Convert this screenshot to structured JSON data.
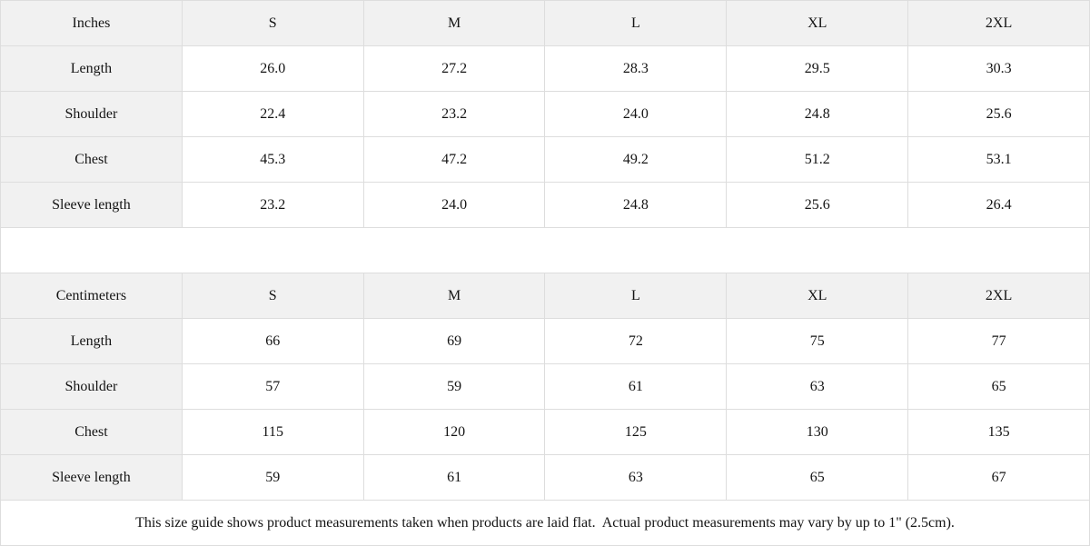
{
  "tables": [
    {
      "unit_label": "Inches",
      "sizes": [
        "S",
        "M",
        "L",
        "XL",
        "2XL"
      ],
      "rows": [
        {
          "label": "Length",
          "values": [
            "26.0",
            "27.2",
            "28.3",
            "29.5",
            "30.3"
          ]
        },
        {
          "label": "Shoulder",
          "values": [
            "22.4",
            "23.2",
            "24.0",
            "24.8",
            "25.6"
          ]
        },
        {
          "label": "Chest",
          "values": [
            "45.3",
            "47.2",
            "49.2",
            "51.2",
            "53.1"
          ]
        },
        {
          "label": "Sleeve length",
          "values": [
            "23.2",
            "24.0",
            "24.8",
            "25.6",
            "26.4"
          ]
        }
      ]
    },
    {
      "unit_label": "Centimeters",
      "sizes": [
        "S",
        "M",
        "L",
        "XL",
        "2XL"
      ],
      "rows": [
        {
          "label": "Length",
          "values": [
            "66",
            "69",
            "72",
            "75",
            "77"
          ]
        },
        {
          "label": "Shoulder",
          "values": [
            "57",
            "59",
            "61",
            "63",
            "65"
          ]
        },
        {
          "label": "Chest",
          "values": [
            "115",
            "120",
            "125",
            "130",
            "135"
          ]
        },
        {
          "label": "Sleeve length",
          "values": [
            "59",
            "61",
            "63",
            "65",
            "67"
          ]
        }
      ]
    }
  ],
  "footer_note": "This size guide shows product measurements taken when products are laid flat.  Actual product measurements may vary by up to 1\" (2.5cm).",
  "colors": {
    "header_background": "#f1f1f1",
    "grid_border": "#dddddd",
    "text": "#141414"
  }
}
